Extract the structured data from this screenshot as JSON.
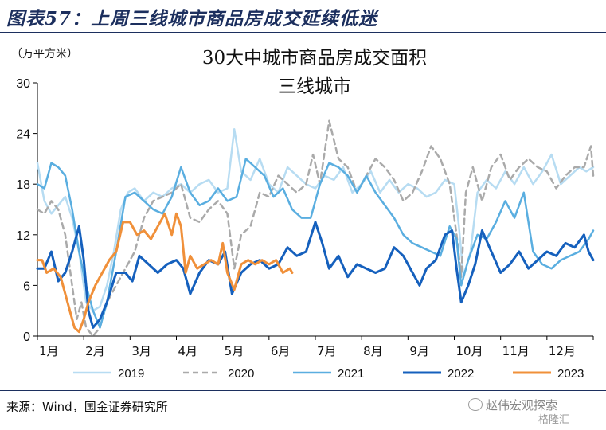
{
  "figure": {
    "title": "图表57：上周三线城市商品房成交延续低迷",
    "source": "来源：Wind，国金证券研究所",
    "watermark": "赵伟宏观探索",
    "watermark_sub": "格隆汇"
  },
  "chart_data": {
    "type": "line",
    "title": "30大中城市商品房成交面积",
    "subtitle": "三线城市",
    "ylabel": "（万平方米）",
    "ylim": [
      0,
      30
    ],
    "yticks": [
      0,
      6,
      12,
      18,
      24,
      30
    ],
    "xlim": [
      1,
      13
    ],
    "xticks": [
      "1月",
      "2月",
      "3月",
      "4月",
      "5月",
      "6月",
      "7月",
      "8月",
      "9月",
      "10月",
      "11月",
      "12月"
    ],
    "grid": false,
    "legend": "bottom",
    "series": [
      {
        "name": "2019",
        "color": "#b7dcf2",
        "dash": "solid",
        "width": 2.5,
        "x": [
          1.0,
          1.15,
          1.3,
          1.45,
          1.6,
          1.75,
          1.9,
          2.05,
          2.2,
          2.35,
          2.5,
          2.65,
          2.8,
          2.95,
          3.1,
          3.3,
          3.5,
          3.7,
          3.9,
          4.1,
          4.3,
          4.5,
          4.7,
          4.9,
          5.1,
          5.25,
          5.4,
          5.6,
          5.8,
          6.0,
          6.2,
          6.4,
          6.6,
          6.8,
          7.0,
          7.2,
          7.4,
          7.6,
          7.8,
          8.0,
          8.2,
          8.4,
          8.6,
          8.8,
          9.0,
          9.2,
          9.4,
          9.6,
          9.8,
          10.0,
          10.1,
          10.2,
          10.35,
          10.5,
          10.7,
          10.9,
          11.1,
          11.3,
          11.5,
          11.7,
          11.9,
          12.1,
          12.3,
          12.5,
          12.7,
          12.85,
          13.0
        ],
        "y": [
          20.5,
          16,
          14.5,
          15.5,
          16.5,
          14,
          10,
          4,
          3,
          3.5,
          6,
          10,
          15,
          17,
          17.5,
          16,
          17,
          16.5,
          17.5,
          18,
          17,
          18,
          18.5,
          17,
          17.5,
          24.5,
          19.5,
          18.5,
          21,
          18,
          17,
          20,
          19,
          18,
          17.5,
          19,
          18.5,
          20,
          17,
          18,
          19.5,
          17,
          18.5,
          17,
          18,
          17.5,
          16.5,
          17,
          18.5,
          18,
          13,
          7,
          10,
          17,
          18.5,
          17.5,
          19.5,
          18,
          20,
          18,
          19.5,
          21.5,
          18,
          19,
          20,
          19.5,
          20
        ]
      },
      {
        "name": "2020",
        "color": "#aaaaaa",
        "dash": "dashed",
        "width": 2.5,
        "x": [
          1.0,
          1.15,
          1.3,
          1.45,
          1.6,
          1.75,
          1.85,
          1.95,
          2.05,
          2.2,
          2.35,
          2.5,
          2.7,
          2.9,
          3.1,
          3.3,
          3.5,
          3.7,
          3.9,
          4.1,
          4.3,
          4.5,
          4.7,
          4.9,
          5.1,
          5.25,
          5.4,
          5.6,
          5.8,
          6.0,
          6.2,
          6.4,
          6.6,
          6.8,
          6.95,
          7.1,
          7.3,
          7.5,
          7.7,
          7.9,
          8.1,
          8.3,
          8.5,
          8.7,
          8.9,
          9.1,
          9.3,
          9.5,
          9.7,
          9.9,
          10.05,
          10.15,
          10.25,
          10.4,
          10.6,
          10.8,
          11.0,
          11.2,
          11.4,
          11.6,
          11.8,
          12.0,
          12.2,
          12.4,
          12.6,
          12.8,
          12.95,
          13.0
        ],
        "y": [
          15,
          14.5,
          16,
          15,
          12,
          6,
          2,
          4,
          1,
          0,
          1,
          4,
          6,
          8,
          10,
          14,
          16,
          16.5,
          17,
          18,
          14,
          13.5,
          15,
          16,
          14.5,
          8,
          12,
          13,
          17,
          16.5,
          19,
          18,
          17,
          18,
          21.5,
          18,
          25.5,
          21,
          20,
          17,
          19,
          21,
          20,
          18.5,
          16,
          17,
          19.5,
          22.5,
          21,
          18,
          12,
          7,
          17,
          20,
          16,
          20,
          21.5,
          18.5,
          20,
          21,
          20,
          19.5,
          17.5,
          19,
          20,
          20,
          22.5,
          19
        ]
      },
      {
        "name": "2021",
        "color": "#5aaee0",
        "dash": "solid",
        "width": 2.5,
        "x": [
          1.0,
          1.15,
          1.3,
          1.45,
          1.6,
          1.75,
          1.9,
          2.05,
          2.2,
          2.35,
          2.5,
          2.7,
          2.9,
          3.1,
          3.3,
          3.5,
          3.7,
          3.9,
          4.1,
          4.3,
          4.5,
          4.7,
          4.9,
          5.1,
          5.3,
          5.5,
          5.7,
          5.9,
          6.1,
          6.3,
          6.5,
          6.7,
          6.9,
          7.1,
          7.3,
          7.5,
          7.7,
          7.9,
          8.1,
          8.3,
          8.5,
          8.7,
          8.9,
          9.1,
          9.3,
          9.5,
          9.7,
          9.9,
          10.05,
          10.15,
          10.3,
          10.5,
          10.7,
          10.9,
          11.1,
          11.3,
          11.5,
          11.7,
          11.9,
          12.1,
          12.3,
          12.5,
          12.7,
          12.9,
          13.0
        ],
        "y": [
          18,
          17.5,
          20.5,
          20,
          19,
          15,
          10,
          6,
          3,
          1,
          4,
          10,
          16.5,
          17,
          16,
          15,
          14.5,
          16.5,
          20,
          17,
          15.5,
          16,
          17.5,
          16,
          16.5,
          21,
          20,
          19,
          16.5,
          17.5,
          15,
          14,
          14,
          18,
          20.5,
          20,
          19,
          17,
          19,
          17,
          15.5,
          14,
          12,
          11,
          10.5,
          10,
          9.5,
          13,
          11.5,
          6,
          9,
          12,
          11.5,
          13.5,
          16,
          14,
          17,
          10,
          8.5,
          8,
          9,
          9.5,
          10,
          11.5,
          12.5
        ]
      },
      {
        "name": "2022",
        "color": "#1560bd",
        "dash": "solid",
        "width": 3,
        "x": [
          1.0,
          1.15,
          1.3,
          1.45,
          1.6,
          1.75,
          1.9,
          2.0,
          2.1,
          2.2,
          2.35,
          2.5,
          2.7,
          2.9,
          3.05,
          3.2,
          3.4,
          3.6,
          3.8,
          4.0,
          4.15,
          4.3,
          4.5,
          4.7,
          4.9,
          5.05,
          5.2,
          5.4,
          5.6,
          5.8,
          6.0,
          6.2,
          6.4,
          6.6,
          6.8,
          7.0,
          7.15,
          7.3,
          7.5,
          7.7,
          7.9,
          8.1,
          8.3,
          8.5,
          8.7,
          8.9,
          9.1,
          9.25,
          9.4,
          9.6,
          9.8,
          9.95,
          10.05,
          10.15,
          10.3,
          10.45,
          10.6,
          10.8,
          11.0,
          11.2,
          11.4,
          11.6,
          11.8,
          12.0,
          12.2,
          12.4,
          12.6,
          12.8,
          12.9,
          13.0
        ],
        "y": [
          8,
          8,
          10,
          6.5,
          7.5,
          10,
          13,
          9,
          3,
          1,
          2,
          4,
          7.5,
          7.5,
          6.5,
          9.5,
          8.5,
          7.5,
          8.5,
          9,
          8,
          5,
          7.5,
          9,
          8.5,
          10,
          5,
          7.5,
          8.5,
          9,
          8,
          8.5,
          10.5,
          9.5,
          10,
          13.5,
          11,
          8,
          9.5,
          7,
          8.5,
          8,
          7.5,
          8,
          10.5,
          9.5,
          7.5,
          6,
          8,
          9,
          12,
          12.5,
          8,
          4,
          6,
          8.5,
          12.5,
          10,
          7.5,
          8.5,
          10,
          8,
          9,
          10,
          9.5,
          11,
          10.5,
          12,
          10,
          9
        ]
      },
      {
        "name": "2023",
        "color": "#f0903a",
        "dash": "solid",
        "width": 3,
        "x": [
          1.0,
          1.1,
          1.2,
          1.35,
          1.5,
          1.6,
          1.7,
          1.8,
          1.9,
          2.0,
          2.1,
          2.25,
          2.4,
          2.55,
          2.7,
          2.85,
          3.0,
          3.15,
          3.3,
          3.45,
          3.6,
          3.75,
          3.9,
          4.0,
          4.1,
          4.2,
          4.3,
          4.45,
          4.6,
          4.75,
          4.9,
          5.0,
          5.1,
          5.25,
          5.4,
          5.55,
          5.7,
          5.85,
          6.0,
          6.15,
          6.3,
          6.45,
          6.5
        ],
        "y": [
          9,
          9,
          7.5,
          8,
          7,
          5,
          3,
          1,
          0.5,
          2,
          4,
          6,
          7.5,
          9,
          10,
          13.5,
          13.5,
          12,
          12.5,
          11.5,
          13,
          14.5,
          12,
          14.5,
          13,
          7.5,
          9.5,
          8,
          8.5,
          9,
          8.5,
          11,
          7.5,
          5.5,
          8.5,
          9,
          8.5,
          9,
          8.5,
          9,
          7.5,
          8,
          7.5
        ]
      }
    ]
  }
}
